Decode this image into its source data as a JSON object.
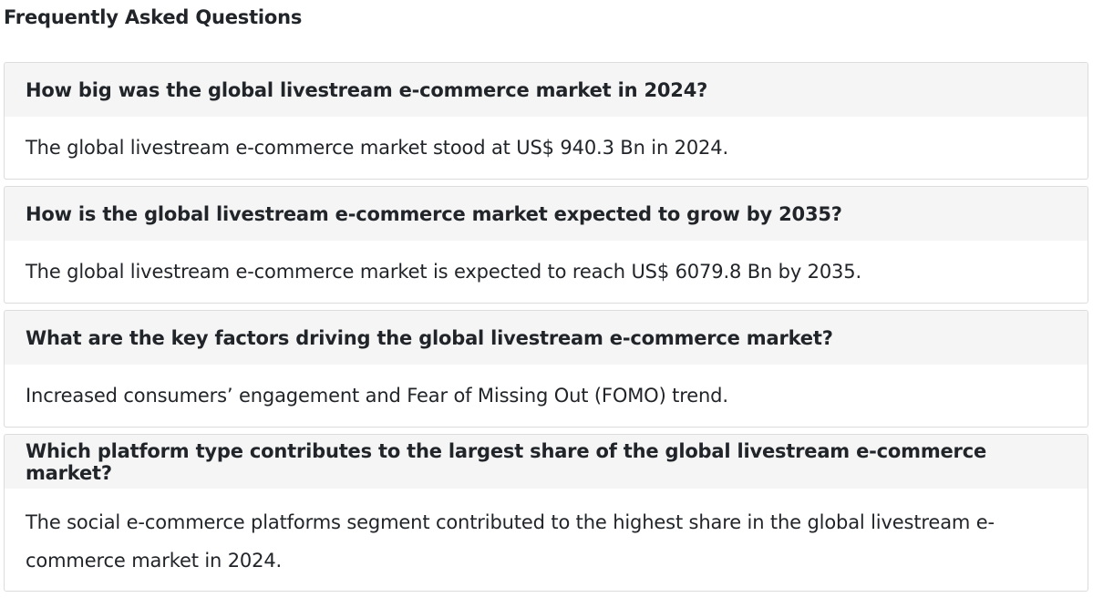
{
  "title": "Frequently Asked Questions",
  "faqs": [
    {
      "question": "How big was the global livestream e-commerce market in 2024?",
      "answer": "The global livestream e-commerce market stood at US$ 940.3 Bn in 2024."
    },
    {
      "question": "How is the global livestream e-commerce market expected to grow by 2035?",
      "answer": "The global livestream e-commerce market is expected to reach US$ 6079.8 Bn by 2035."
    },
    {
      "question": "What are the key factors driving the global livestream e-commerce market?",
      "answer": "Increased consumers’ engagement and Fear of Missing Out (FOMO) trend."
    },
    {
      "question": "Which platform type contributes to the largest share of the global livestream e-commerce market?",
      "answer": "The social e-commerce platforms segment contributed to the highest share in the global livestream e-commerce market in 2024."
    }
  ]
}
